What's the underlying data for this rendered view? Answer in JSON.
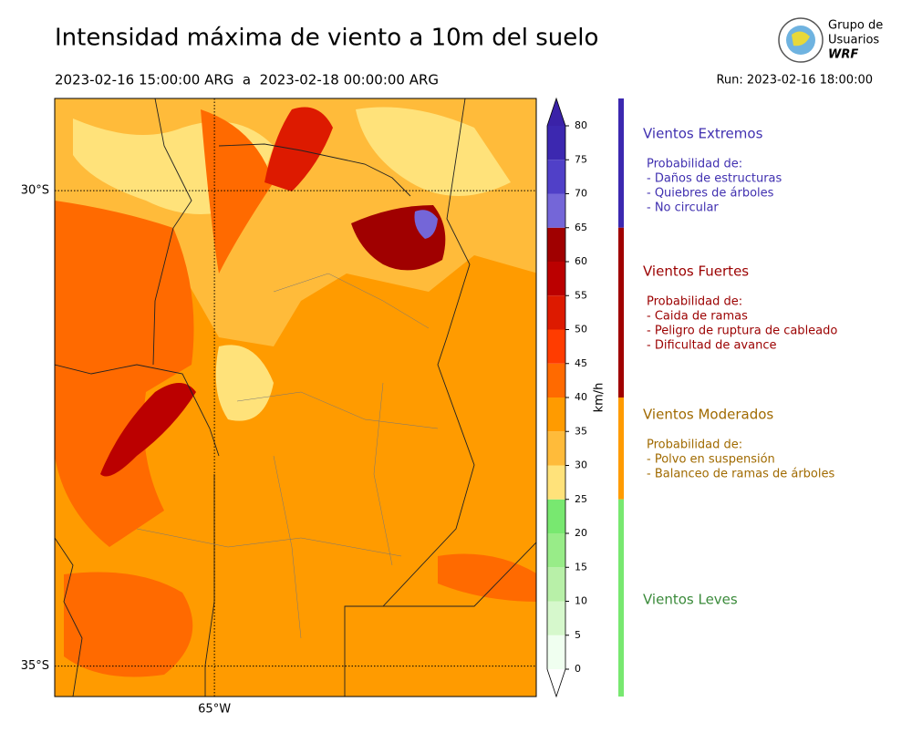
{
  "header": {
    "title": "Intensidad máxima de viento a 10m del suelo",
    "period": "2023-02-16 15:00:00 ARG  a  2023-02-18 00:00:00 ARG",
    "run": "Run: 2023-02-16 18:00:00",
    "logo": [
      "Grupo de",
      "Usuarios",
      "WRF"
    ]
  },
  "map": {
    "latlim": [
      -35.32,
      -29.03
    ],
    "lonlim": [
      -66.98,
      -61.01
    ],
    "lats": [
      {
        "value": -30,
        "label": "30°S"
      },
      {
        "value": -35,
        "label": "35°S"
      }
    ],
    "lons": [
      {
        "value": -65,
        "label": "65°W"
      }
    ]
  },
  "colorbar": {
    "label": "km/h",
    "ticks": [
      0,
      5,
      10,
      15,
      20,
      25,
      30,
      35,
      40,
      45,
      50,
      55,
      60,
      65,
      70,
      75,
      80
    ],
    "colors": [
      "#f0fff0",
      "#d6f8cc",
      "#b8f0a8",
      "#98ec88",
      "#78e870",
      "#ffe27a",
      "#ffbb3a",
      "#ff9b00",
      "#ff6a00",
      "#ff3c00",
      "#dd1a00",
      "#bb0000",
      "#a00000",
      "#7466d8",
      "#5040c8",
      "#3c28b0"
    ],
    "over": "#3a22a8",
    "under": "#ffffff"
  },
  "legend": [
    {
      "title": "Vientos Extremos",
      "color": "#4030b0",
      "bar": "#3c28b0",
      "threshold": 65,
      "lines": [
        "Probabilidad de:",
        "- Daños de estructuras",
        "- Quiebres de árboles",
        "- No circular"
      ]
    },
    {
      "title": "Vientos Fuertes",
      "color": "#9b0000",
      "bar": "#a00000",
      "threshold": 40,
      "lines": [
        "Probabilidad de:",
        "- Caida de ramas",
        "- Peligro de ruptura de cableado",
        "- Dificultad de avance"
      ]
    },
    {
      "title": "Vientos Moderados",
      "color": "#a06a00",
      "bar": "#ff9b00",
      "threshold": 25,
      "lines": [
        "Probabilidad de:",
        "- Polvo en suspensión",
        "- Balanceo de ramas de árboles"
      ]
    },
    {
      "title": "Vientos Leves",
      "color": "#3a8a3a",
      "bar": "#78e870",
      "threshold": 0,
      "lines": []
    }
  ]
}
